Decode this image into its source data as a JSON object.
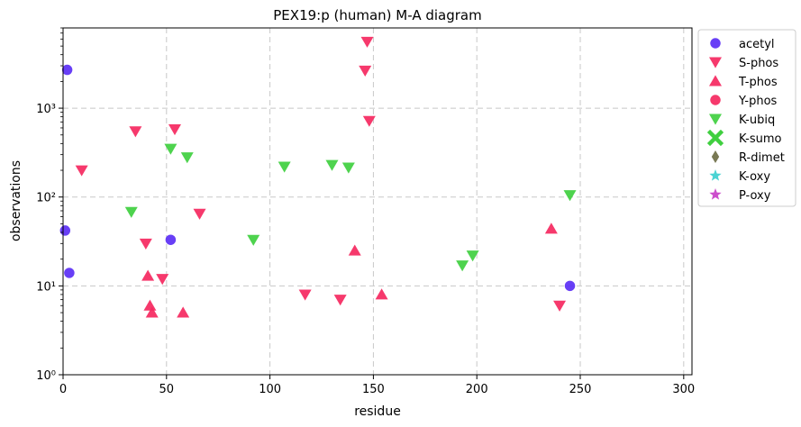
{
  "chart_data": {
    "type": "scatter",
    "title": "PEX19:p (human) M-A diagram",
    "xlabel": "residue",
    "ylabel": "observations",
    "xlim": [
      0,
      304
    ],
    "ylim": [
      1,
      8000
    ],
    "yscale": "log",
    "x_ticks": [
      0,
      50,
      100,
      150,
      200,
      250,
      300
    ],
    "y_ticks": [
      {
        "value": 1,
        "label": "10⁰"
      },
      {
        "value": 10,
        "label": "10¹"
      },
      {
        "value": 100,
        "label": "10²"
      },
      {
        "value": 1000,
        "label": "10³"
      }
    ],
    "grid": true,
    "legend_position": "outside-right-top",
    "series": [
      {
        "name": "acetyl",
        "marker": "circle",
        "color": "#5b2ff5",
        "points": [
          [
            2,
            2700
          ],
          [
            1,
            42
          ],
          [
            3,
            14
          ],
          [
            52,
            33
          ],
          [
            245,
            10
          ]
        ]
      },
      {
        "name": "S-phos",
        "marker": "triangle-down",
        "color": "#f5285f",
        "points": [
          [
            9,
            200
          ],
          [
            35,
            550
          ],
          [
            40,
            30
          ],
          [
            48,
            12
          ],
          [
            54,
            580
          ],
          [
            66,
            65
          ],
          [
            117,
            8
          ],
          [
            134,
            7
          ],
          [
            146,
            2650
          ],
          [
            147,
            5600
          ],
          [
            148,
            720
          ],
          [
            240,
            6
          ]
        ]
      },
      {
        "name": "T-phos",
        "marker": "triangle-up",
        "color": "#f5285f",
        "points": [
          [
            41,
            13
          ],
          [
            42,
            6
          ],
          [
            43,
            5
          ],
          [
            58,
            5
          ],
          [
            141,
            25
          ],
          [
            154,
            8
          ],
          [
            236,
            44
          ]
        ]
      },
      {
        "name": "Y-phos",
        "marker": "circle",
        "color": "#f5285f",
        "points": []
      },
      {
        "name": "K-ubiq",
        "marker": "triangle-down",
        "color": "#3fcf3f",
        "points": [
          [
            33,
            68
          ],
          [
            52,
            350
          ],
          [
            60,
            280
          ],
          [
            92,
            33
          ],
          [
            107,
            220
          ],
          [
            130,
            230
          ],
          [
            138,
            215
          ],
          [
            193,
            17
          ],
          [
            198,
            22
          ],
          [
            245,
            105
          ]
        ]
      },
      {
        "name": "K-sumo",
        "marker": "x",
        "color": "#3fcf3f",
        "points": []
      },
      {
        "name": "R-dimet",
        "marker": "diamond",
        "color": "#6e6e45",
        "points": []
      },
      {
        "name": "K-oxy",
        "marker": "star",
        "color": "#3ccfcf",
        "points": []
      },
      {
        "name": "P-oxy",
        "marker": "star",
        "color": "#c83fc8",
        "points": []
      }
    ]
  }
}
